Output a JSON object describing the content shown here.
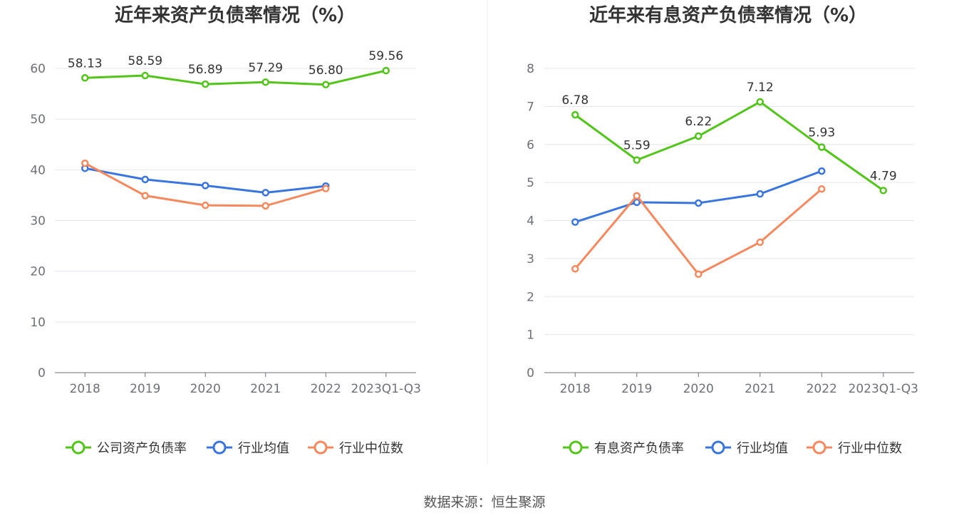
{
  "source_label": "数据来源：恒生聚源",
  "chart_data": [
    {
      "type": "line",
      "title": "近年来资产负债率情况（%）",
      "categories": [
        "2018",
        "2019",
        "2020",
        "2021",
        "2022",
        "2023Q1-Q3"
      ],
      "ylim": [
        0,
        60
      ],
      "yticks": [
        0,
        10,
        20,
        30,
        40,
        50,
        60
      ],
      "grid": true,
      "legend_position": "bottom",
      "series": [
        {
          "name": "公司资产负债率",
          "color": "#52c41a",
          "labels": true,
          "values": [
            58.13,
            58.59,
            56.89,
            57.29,
            56.8,
            59.56
          ]
        },
        {
          "name": "行业均值",
          "color": "#3a75dd",
          "labels": false,
          "values": [
            40.3,
            38.1,
            36.9,
            35.5,
            36.8,
            null
          ]
        },
        {
          "name": "行业中位数",
          "color": "#f4885e",
          "labels": false,
          "values": [
            41.3,
            34.9,
            33.0,
            32.9,
            36.3,
            null
          ]
        }
      ]
    },
    {
      "type": "line",
      "title": "近年来有息资产负债率情况（%）",
      "categories": [
        "2018",
        "2019",
        "2020",
        "2021",
        "2022",
        "2023Q1-Q3"
      ],
      "ylim": [
        0,
        8
      ],
      "yticks": [
        0,
        1,
        2,
        3,
        4,
        5,
        6,
        7,
        8
      ],
      "grid": true,
      "legend_position": "bottom",
      "series": [
        {
          "name": "有息资产负债率",
          "color": "#52c41a",
          "labels": true,
          "values": [
            6.78,
            5.59,
            6.22,
            7.12,
            5.93,
            4.79
          ]
        },
        {
          "name": "行业均值",
          "color": "#3a75dd",
          "labels": false,
          "values": [
            3.96,
            4.48,
            4.46,
            4.7,
            5.3,
            null
          ]
        },
        {
          "name": "行业中位数",
          "color": "#f4885e",
          "labels": false,
          "values": [
            2.73,
            4.65,
            2.59,
            3.43,
            4.83,
            null
          ]
        }
      ]
    }
  ]
}
